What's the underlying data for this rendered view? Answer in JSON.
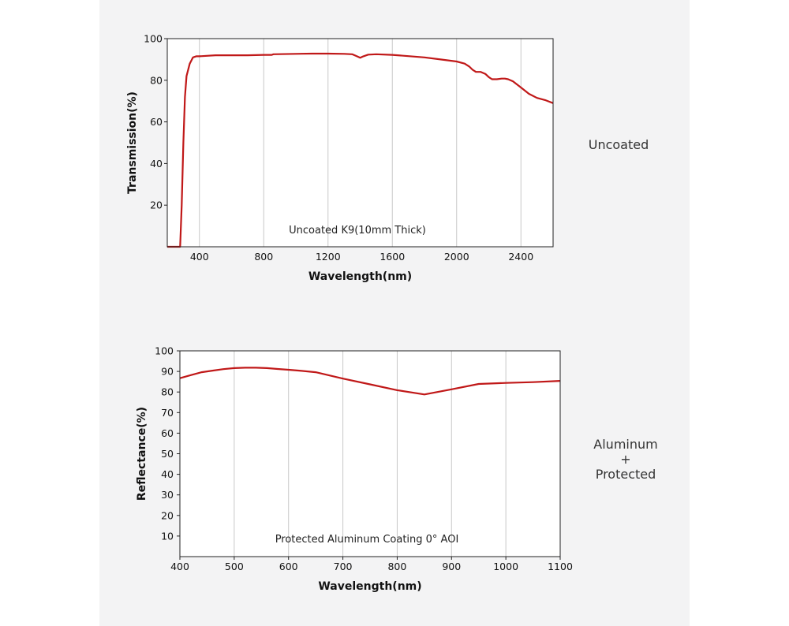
{
  "colors": {
    "curve": "#c01818",
    "grid": "#c8c8c8",
    "frame": "#222222"
  },
  "side_labels": {
    "top": "Uncoated",
    "bottom": [
      "Aluminum",
      "+",
      "Protected"
    ]
  },
  "chart_data": [
    {
      "type": "line",
      "title": "",
      "xlabel": "Wavelength(nm)",
      "ylabel": "Transmission(%)",
      "annotation": "Uncoated K9(10mm Thick)",
      "xlim": [
        200,
        2600
      ],
      "ylim": [
        0,
        100
      ],
      "xticks": [
        400,
        800,
        1200,
        1600,
        2000,
        2400
      ],
      "yticks": [
        20,
        40,
        60,
        80,
        100
      ],
      "grid": "vertical",
      "series": [
        {
          "x": [
            200,
            280,
            290,
            300,
            310,
            320,
            340,
            360,
            380,
            400,
            500,
            600,
            700,
            800,
            850,
            860,
            1000,
            1100,
            1200,
            1300,
            1350,
            1380,
            1400,
            1420,
            1450,
            1500,
            1600,
            1700,
            1800,
            1900,
            2000,
            2050,
            2080,
            2100,
            2120,
            2150,
            2180,
            2200,
            2220,
            2250,
            2280,
            2300,
            2320,
            2350,
            2400,
            2450,
            2500,
            2550,
            2600
          ],
          "y": [
            0,
            0,
            20,
            50,
            72,
            82,
            88,
            91,
            91.5,
            91.5,
            92,
            92,
            92,
            92.2,
            92.2,
            92.5,
            92.7,
            92.8,
            92.8,
            92.7,
            92.5,
            91.5,
            90.8,
            91.5,
            92.3,
            92.5,
            92.2,
            91.6,
            91,
            90,
            89,
            88,
            86.5,
            85,
            84,
            84,
            83,
            81.5,
            80.5,
            80.5,
            80.8,
            80.8,
            80.5,
            79.5,
            76.5,
            73.5,
            71.5,
            70.5,
            69
          ]
        }
      ]
    },
    {
      "type": "line",
      "title": "",
      "xlabel": "Wavelength(nm)",
      "ylabel": "Reflectance(%)",
      "annotation": "Protected Aluminum Coating  0°  AOI",
      "xlim": [
        400,
        1100
      ],
      "ylim": [
        0,
        100
      ],
      "xticks": [
        400,
        500,
        600,
        700,
        800,
        900,
        1000,
        1100
      ],
      "yticks": [
        10,
        20,
        30,
        40,
        50,
        60,
        70,
        80,
        90,
        100
      ],
      "grid": "vertical",
      "series": [
        {
          "x": [
            400,
            420,
            440,
            460,
            480,
            500,
            520,
            540,
            560,
            580,
            600,
            620,
            650,
            700,
            750,
            800,
            850,
            900,
            950,
            1000,
            1050,
            1100
          ],
          "y": [
            86.7,
            88.2,
            89.6,
            90.4,
            91.1,
            91.6,
            91.8,
            91.8,
            91.6,
            91.2,
            90.8,
            90.4,
            89.6,
            86.5,
            83.7,
            80.9,
            78.8,
            81.3,
            83.9,
            84.4,
            84.8,
            85.4
          ]
        }
      ]
    }
  ]
}
